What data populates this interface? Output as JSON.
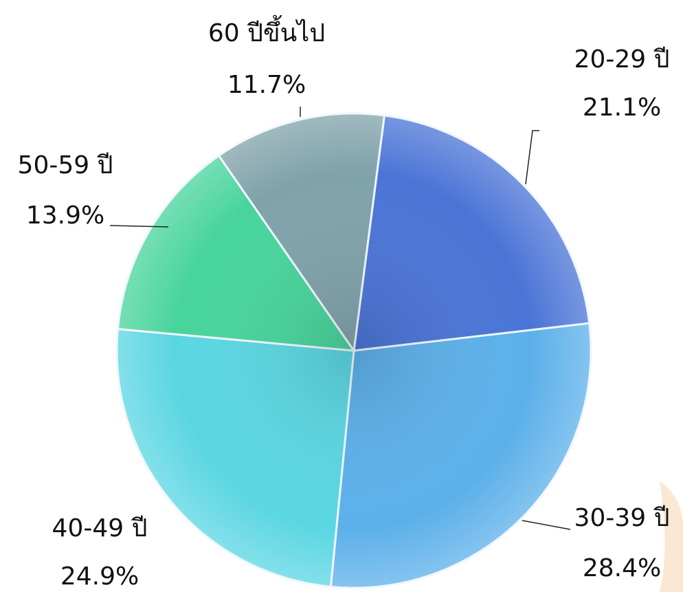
{
  "chart_data": {
    "type": "pie",
    "categories": [
      "20-29 ปี",
      "30-39 ปี",
      "40-49 ปี",
      "50-59 ปี",
      "60 ปีขึ้นไป"
    ],
    "values": [
      21.1,
      28.4,
      24.9,
      13.9,
      11.7
    ],
    "value_labels": [
      "21.1%",
      "28.4%",
      "24.9%",
      "13.9%",
      "11.7%"
    ],
    "colors": [
      "#4a74d6",
      "#5cb0ea",
      "#5ad6e2",
      "#48d49c",
      "#80a2aa"
    ]
  }
}
